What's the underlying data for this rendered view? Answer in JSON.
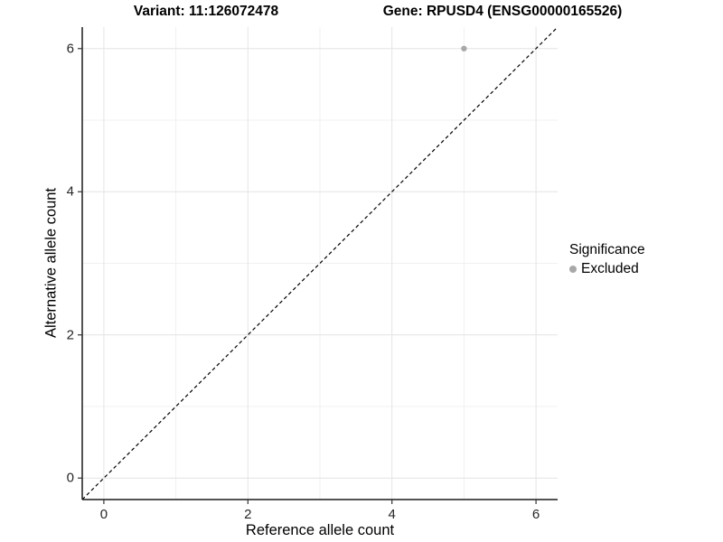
{
  "header": {
    "variant_title": "Variant: 11:126072478",
    "gene_title": "Gene: RPUSD4 (ENSG00000165526)"
  },
  "legend": {
    "title": "Significance",
    "items": [
      {
        "label": "Excluded",
        "color": "#a8a8a8"
      }
    ]
  },
  "chart_data": {
    "type": "scatter",
    "title": "Variant: 11:126072478 — Gene: RPUSD4 (ENSG00000165526)",
    "xlabel": "Reference allele count",
    "ylabel": "Alternative allele count",
    "xlim": [
      -0.3,
      6.3
    ],
    "ylim": [
      -0.3,
      6.3
    ],
    "x_ticks": [
      0,
      2,
      4,
      6
    ],
    "y_ticks": [
      0,
      2,
      4,
      6
    ],
    "x_minor": [
      1,
      3,
      5
    ],
    "y_minor": [
      1,
      3,
      5
    ],
    "grid": "major+minor",
    "legend_position": "right",
    "series": [
      {
        "name": "Excluded",
        "color": "#a8a8a8",
        "points": [
          {
            "x": 5,
            "y": 6
          }
        ]
      }
    ],
    "reference_line": {
      "kind": "identity y=x",
      "style": "dashed",
      "color": "#000000",
      "from": [
        -0.3,
        -0.3
      ],
      "to": [
        6.3,
        6.3
      ]
    },
    "colors": {
      "grid_major": "#e4e4e4",
      "grid_minor": "#f0f0f0",
      "axis_line": "#1a1a1a",
      "point": "#a8a8a8"
    }
  }
}
